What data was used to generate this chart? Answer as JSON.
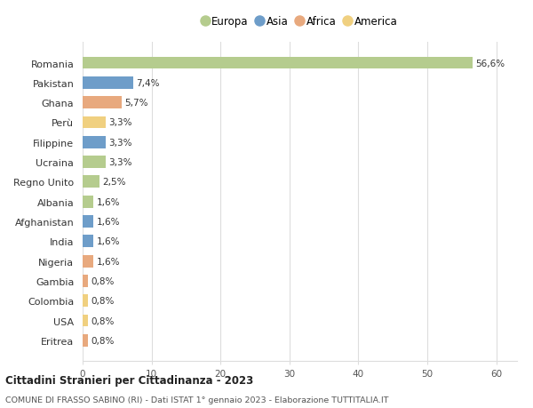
{
  "categories": [
    "Romania",
    "Pakistan",
    "Ghana",
    "Perù",
    "Filippine",
    "Ucraina",
    "Regno Unito",
    "Albania",
    "Afghanistan",
    "India",
    "Nigeria",
    "Gambia",
    "Colombia",
    "USA",
    "Eritrea"
  ],
  "values": [
    56.6,
    7.4,
    5.7,
    3.3,
    3.3,
    3.3,
    2.5,
    1.6,
    1.6,
    1.6,
    1.6,
    0.8,
    0.8,
    0.8,
    0.8
  ],
  "labels": [
    "56,6%",
    "7,4%",
    "5,7%",
    "3,3%",
    "3,3%",
    "3,3%",
    "2,5%",
    "1,6%",
    "1,6%",
    "1,6%",
    "1,6%",
    "0,8%",
    "0,8%",
    "0,8%",
    "0,8%"
  ],
  "continents": [
    "Europa",
    "Asia",
    "Africa",
    "America",
    "Asia",
    "Europa",
    "Europa",
    "Europa",
    "Asia",
    "Asia",
    "Africa",
    "Africa",
    "America",
    "America",
    "Africa"
  ],
  "continent_colors": {
    "Europa": "#b5cc8e",
    "Asia": "#6e9dc9",
    "Africa": "#e8a97e",
    "America": "#f0d080"
  },
  "xlim": [
    0,
    63
  ],
  "xticks": [
    0,
    10,
    20,
    30,
    40,
    50,
    60
  ],
  "title": "Cittadini Stranieri per Cittadinanza - 2023",
  "subtitle": "COMUNE DI FRASSO SABINO (RI) - Dati ISTAT 1° gennaio 2023 - Elaborazione TUTTITALIA.IT",
  "background_color": "#ffffff",
  "grid_color": "#dddddd",
  "bar_height": 0.62,
  "legend_order": [
    "Europa",
    "Asia",
    "Africa",
    "America"
  ]
}
